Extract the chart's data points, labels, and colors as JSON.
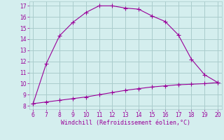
{
  "xlabel": "Windchill (Refroidissement éolien,°C)",
  "x_upper": [
    6,
    7,
    8,
    9,
    10,
    11,
    12,
    13,
    14,
    15,
    16,
    17,
    18,
    19,
    20
  ],
  "y_upper": [
    8.2,
    11.8,
    14.3,
    15.5,
    16.4,
    17.0,
    17.0,
    16.8,
    16.7,
    16.1,
    15.6,
    14.4,
    12.2,
    10.8,
    10.1
  ],
  "x_lower": [
    6,
    7,
    8,
    9,
    10,
    11,
    12,
    13,
    14,
    15,
    16,
    17,
    18,
    19,
    20
  ],
  "y_lower": [
    8.2,
    8.35,
    8.5,
    8.65,
    8.8,
    9.0,
    9.2,
    9.4,
    9.55,
    9.7,
    9.8,
    9.9,
    9.95,
    10.0,
    10.1
  ],
  "line_color": "#990099",
  "bg_color": "#d4eeee",
  "grid_color": "#aacccc",
  "xlim": [
    5.7,
    20.3
  ],
  "ylim": [
    7.7,
    17.4
  ],
  "xticks": [
    6,
    7,
    8,
    9,
    10,
    11,
    12,
    13,
    14,
    15,
    16,
    17,
    18,
    19,
    20
  ],
  "yticks": [
    8,
    9,
    10,
    11,
    12,
    13,
    14,
    15,
    16,
    17
  ]
}
